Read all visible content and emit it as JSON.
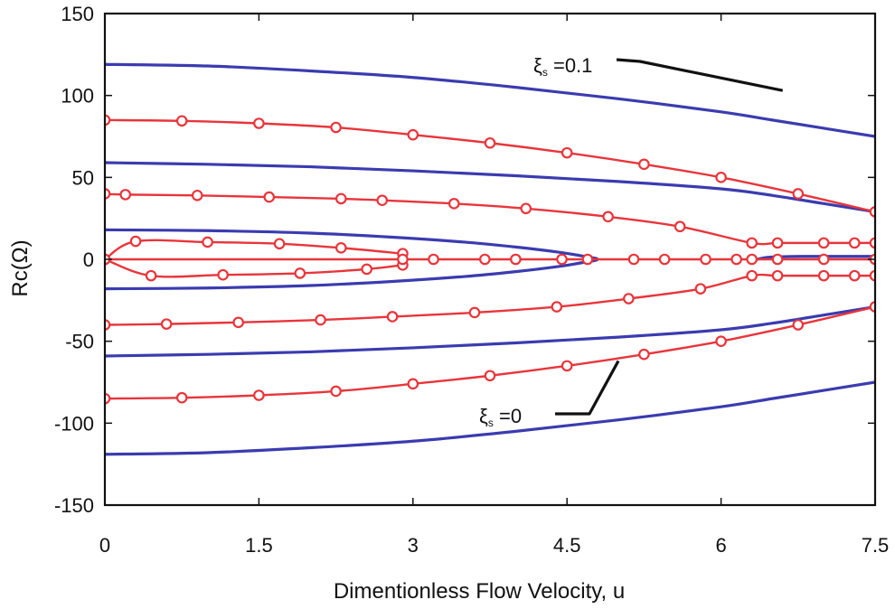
{
  "chart_data": {
    "type": "line",
    "xlabel": "Dimentionless Flow Velocity, u",
    "ylabel": "Rc(Ω)",
    "xlim": [
      0,
      7.5
    ],
    "ylim": [
      -150,
      150
    ],
    "xticks": [
      0,
      1.5,
      3,
      4.5,
      6,
      7.5
    ],
    "xtick_labels": [
      "0",
      "1.5",
      "3",
      "4.5",
      "6",
      "7.5"
    ],
    "yticks": [
      150,
      100,
      50,
      0,
      -50,
      -100,
      -150
    ],
    "ytick_labels": [
      "150",
      "100",
      "50",
      "0",
      "-50",
      "-100",
      "-150"
    ],
    "grid": false,
    "colors": {
      "blue": "#3b3bb0",
      "red": "#e8353b",
      "axis": "#111111"
    },
    "series": [
      {
        "color": "blue",
        "marker": "none",
        "x": [
          0,
          1,
          2,
          3,
          4,
          5,
          6,
          6.5,
          7,
          7.5
        ],
        "y": [
          119,
          118,
          115,
          111,
          105,
          98,
          90,
          85,
          80,
          75
        ]
      },
      {
        "color": "blue",
        "marker": "none",
        "x": [
          0,
          1,
          2,
          3,
          4,
          5,
          6,
          6.5,
          7,
          7.5
        ],
        "y": [
          -119,
          -118,
          -115,
          -111,
          -105,
          -98,
          -90,
          -85,
          -80,
          -75
        ]
      },
      {
        "color": "blue",
        "marker": "none",
        "x": [
          0,
          1,
          2,
          3,
          4,
          5,
          6,
          6.5,
          7,
          7.5
        ],
        "y": [
          59,
          58,
          56.5,
          54,
          51,
          47.5,
          43,
          39,
          34,
          29
        ]
      },
      {
        "color": "blue",
        "marker": "none",
        "x": [
          0,
          1,
          2,
          3,
          4,
          5,
          6,
          6.5,
          7,
          7.5
        ],
        "y": [
          -59,
          -58,
          -56.5,
          -54,
          -51,
          -47.5,
          -43,
          -39,
          -34,
          -29
        ]
      },
      {
        "color": "blue",
        "marker": "none",
        "x": [
          0,
          1,
          2,
          2.8,
          3.5,
          4.0,
          4.4,
          4.65,
          4.8,
          4.65,
          4.4,
          4.0,
          3.5,
          2.8,
          2,
          1,
          0
        ],
        "y": [
          18,
          17.5,
          16,
          13.5,
          10.5,
          7.5,
          4.5,
          2,
          0,
          -2,
          -4.5,
          -7.5,
          -10.5,
          -13.5,
          -16,
          -17.5,
          -18
        ]
      },
      {
        "color": "blue",
        "marker": "none",
        "x": [
          6.35,
          6.45,
          6.6,
          6.8,
          7.1,
          7.5
        ],
        "y": [
          0,
          1.2,
          1.6,
          1.8,
          1.8,
          1.8
        ]
      },
      {
        "color": "red",
        "marker": "circle",
        "x": [
          0,
          0.75,
          1.5,
          2.25,
          3.0,
          3.75,
          4.5,
          5.25,
          6.0,
          6.75,
          7.5
        ],
        "y": [
          85,
          84.5,
          83,
          80.5,
          76,
          71,
          65,
          58,
          50,
          40,
          29
        ]
      },
      {
        "color": "red",
        "marker": "circle",
        "x": [
          0,
          0.75,
          1.5,
          2.25,
          3.0,
          3.75,
          4.5,
          5.25,
          6.0,
          6.75,
          7.5
        ],
        "y": [
          -85,
          -84.5,
          -83,
          -80.5,
          -76,
          -71,
          -65,
          -58,
          -50,
          -40,
          -29
        ]
      },
      {
        "color": "red",
        "marker": "circle",
        "x": [
          0,
          0.2,
          0.9,
          1.6,
          2.3,
          2.7,
          3.4,
          4.1,
          4.9,
          5.6,
          6.3,
          6.55,
          7.0,
          7.3,
          7.5
        ],
        "y": [
          40,
          39.5,
          39,
          38,
          37,
          36,
          34,
          31,
          26,
          20,
          10,
          10,
          10,
          10,
          10
        ]
      },
      {
        "color": "red",
        "marker": "circle",
        "x": [
          0,
          0.6,
          1.3,
          2.1,
          2.8,
          3.6,
          4.4,
          5.1,
          5.8,
          6.3,
          6.55,
          7.0,
          7.3,
          7.5
        ],
        "y": [
          -40,
          -39.5,
          -38.5,
          -37,
          -35,
          -32.5,
          -29,
          -24,
          -18,
          -10,
          -10,
          -10,
          -10,
          -10
        ]
      },
      {
        "color": "red",
        "marker": "circle",
        "x": [
          0,
          0.3,
          1.0,
          1.7,
          2.3,
          2.9
        ],
        "y": [
          0,
          11,
          10.5,
          9.5,
          7,
          3.5
        ]
      },
      {
        "color": "red",
        "marker": "circle",
        "x": [
          0,
          0.45,
          1.15,
          1.9,
          2.55,
          2.9
        ],
        "y": [
          0,
          -10,
          -9.5,
          -8.5,
          -6,
          -3.5
        ]
      },
      {
        "color": "red",
        "marker": "circle",
        "x": [
          0,
          2.9,
          3.2,
          3.7,
          4.0,
          4.45,
          4.7,
          5.15,
          5.45,
          5.85,
          6.15,
          6.3,
          6.55,
          7.0,
          7.5
        ],
        "y": [
          0,
          0,
          0,
          0,
          0,
          0,
          0,
          0,
          0,
          0,
          0,
          0,
          0,
          0,
          0
        ]
      }
    ],
    "annotations": [
      {
        "symbol": "ξ",
        "subscript": "s",
        "text": " =0.1",
        "points_to": [
          6.6,
          103
        ]
      },
      {
        "symbol": "ξ",
        "subscript": "s",
        "text": " =0",
        "points_to": [
          5.0,
          -62
        ]
      }
    ]
  }
}
